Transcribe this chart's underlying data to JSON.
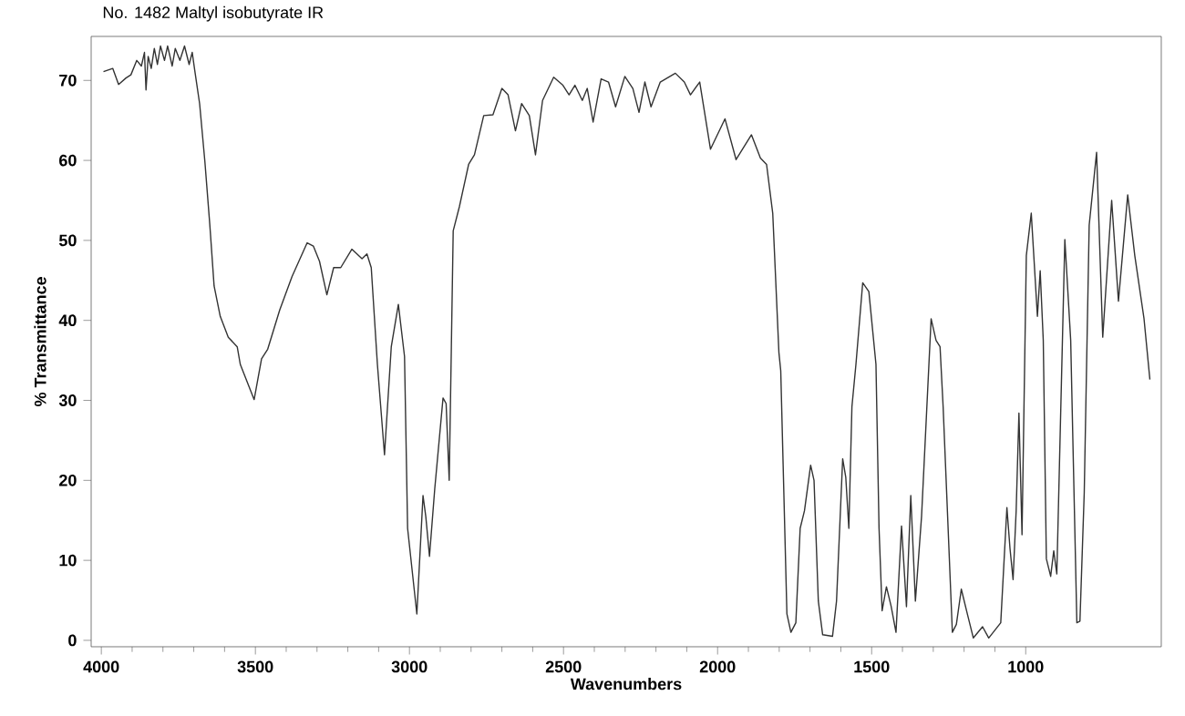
{
  "chart_data": {
    "type": "line",
    "title": "No. 1482 Maltyl isobutyrate IR",
    "xlabel": "Wavenumbers",
    "ylabel": "% Transmittance",
    "xlim": [
      4033,
      560
    ],
    "ylim": [
      -0.8,
      75.5
    ],
    "xticks": [
      4000,
      3500,
      3000,
      2500,
      2000,
      1500,
      1000
    ],
    "yticks": [
      0,
      10,
      20,
      30,
      40,
      50,
      60,
      70
    ],
    "grid": false,
    "legend": false,
    "marker": "none",
    "line_style": "solid",
    "series": [
      {
        "color": "#333333",
        "x": [
          3993,
          3963,
          3944,
          3920,
          3904,
          3885,
          3870,
          3860,
          3855,
          3848,
          3838,
          3828,
          3818,
          3808,
          3795,
          3785,
          3770,
          3760,
          3745,
          3730,
          3715,
          3705,
          3697,
          3681,
          3664,
          3648,
          3634,
          3614,
          3588,
          3559,
          3549,
          3504,
          3480,
          3460,
          3421,
          3381,
          3332,
          3312,
          3292,
          3268,
          3246,
          3223,
          3187,
          3154,
          3138,
          3124,
          3104,
          3081,
          3059,
          3036,
          3016,
          3006,
          2976,
          2956,
          2947,
          2935,
          2918,
          2891,
          2881,
          2871,
          2864,
          2858,
          2838,
          2808,
          2789,
          2759,
          2729,
          2700,
          2680,
          2656,
          2636,
          2611,
          2591,
          2568,
          2532,
          2502,
          2482,
          2463,
          2439,
          2423,
          2404,
          2378,
          2354,
          2331,
          2301,
          2275,
          2255,
          2236,
          2216,
          2186,
          2137,
          2108,
          2088,
          2058,
          2023,
          1976,
          1940,
          1890,
          1861,
          1841,
          1821,
          1801,
          1795,
          1775,
          1762,
          1746,
          1732,
          1718,
          1698,
          1687,
          1673,
          1659,
          1627,
          1614,
          1594,
          1584,
          1574,
          1564,
          1551,
          1529,
          1509,
          1486,
          1476,
          1466,
          1452,
          1437,
          1421,
          1403,
          1387,
          1373,
          1358,
          1338,
          1307,
          1291,
          1278,
          1268,
          1238,
          1225,
          1209,
          1190,
          1170,
          1140,
          1120,
          1081,
          1061,
          1051,
          1041,
          1031,
          1022,
          1012,
          998,
          982,
          962,
          953,
          943,
          933,
          919,
          909,
          899,
          873,
          854,
          834,
          824,
          810,
          794,
          770,
          750,
          721,
          699,
          669,
          646,
          616,
          597
        ],
        "values": [
          71.1,
          71.5,
          69.5,
          70.3,
          70.7,
          72.5,
          71.8,
          73.5,
          68.8,
          73.0,
          71.5,
          74.0,
          72.0,
          74.3,
          72.5,
          74.3,
          71.8,
          74.0,
          72.5,
          74.3,
          72.0,
          73.5,
          71.3,
          67.1,
          59.9,
          52.0,
          44.3,
          40.5,
          37.9,
          36.7,
          34.5,
          30.1,
          35.2,
          36.4,
          41.3,
          45.5,
          49.7,
          49.3,
          47.4,
          43.2,
          46.6,
          46.6,
          48.9,
          47.7,
          48.3,
          46.6,
          34.5,
          23.2,
          36.7,
          42.0,
          35.5,
          14.0,
          3.3,
          18.1,
          15.5,
          10.5,
          18.9,
          30.3,
          29.6,
          20.0,
          36.7,
          51.2,
          54.2,
          59.5,
          60.7,
          65.6,
          65.7,
          69.0,
          68.2,
          63.7,
          67.1,
          65.6,
          60.7,
          67.5,
          70.4,
          69.4,
          68.2,
          69.4,
          67.5,
          69.0,
          64.8,
          70.2,
          69.8,
          66.7,
          70.5,
          69.0,
          66.0,
          69.8,
          66.7,
          69.8,
          70.9,
          69.8,
          68.2,
          69.8,
          61.4,
          65.2,
          60.1,
          63.2,
          60.3,
          59.5,
          53.4,
          36.0,
          33.7,
          3.3,
          1.0,
          2.2,
          14.0,
          16.2,
          21.9,
          20.0,
          4.9,
          0.7,
          0.5,
          4.9,
          22.7,
          20.4,
          14.0,
          29.2,
          34.5,
          44.7,
          43.6,
          34.5,
          14.0,
          3.7,
          6.7,
          4.3,
          1.0,
          14.3,
          4.2,
          18.1,
          4.9,
          15.5,
          40.2,
          37.5,
          36.7,
          29.2,
          1.0,
          2.0,
          6.4,
          3.4,
          0.3,
          1.7,
          0.3,
          2.2,
          16.6,
          11.5,
          7.6,
          16.2,
          28.4,
          13.2,
          48.1,
          53.4,
          40.5,
          46.2,
          37.5,
          10.2,
          8.0,
          11.2,
          8.3,
          50.1,
          37.5,
          2.2,
          2.4,
          18.5,
          51.9,
          61.0,
          37.9,
          55.0,
          42.4,
          55.7,
          48.1,
          40.2,
          32.6
        ]
      }
    ]
  }
}
